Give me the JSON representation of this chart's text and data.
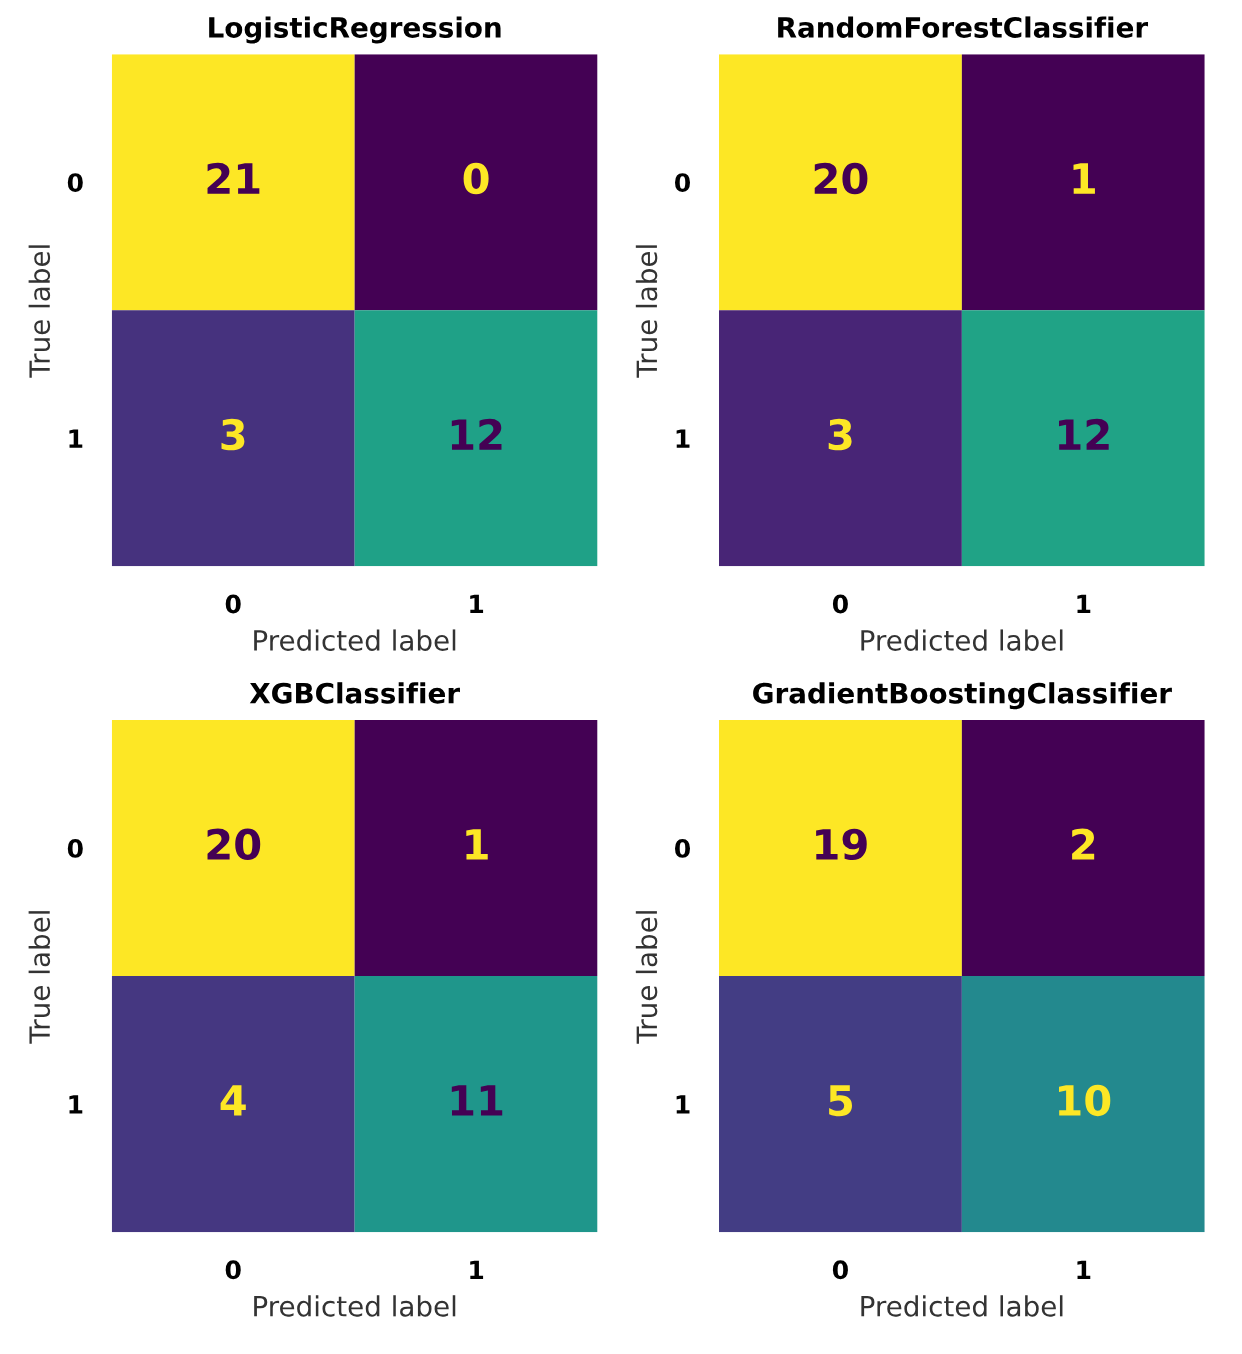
{
  "chart_data": [
    {
      "type": "heatmap",
      "title": "LogisticRegression",
      "xlabel": "Predicted label",
      "ylabel": "True label",
      "categories": [
        "0",
        "1"
      ],
      "y_categories": [
        "0",
        "1"
      ],
      "cells": [
        [
          21,
          0
        ],
        [
          3,
          12
        ]
      ],
      "data_labels": true,
      "grid": false
    },
    {
      "type": "heatmap",
      "title": "RandomForestClassifier",
      "xlabel": "Predicted label",
      "ylabel": "True label",
      "categories": [
        "0",
        "1"
      ],
      "y_categories": [
        "0",
        "1"
      ],
      "cells": [
        [
          20,
          1
        ],
        [
          3,
          12
        ]
      ],
      "data_labels": true,
      "grid": false
    },
    {
      "type": "heatmap",
      "title": "XGBClassifier",
      "xlabel": "Predicted label",
      "ylabel": "True label",
      "categories": [
        "0",
        "1"
      ],
      "y_categories": [
        "0",
        "1"
      ],
      "cells": [
        [
          20,
          1
        ],
        [
          4,
          11
        ]
      ],
      "data_labels": true,
      "grid": false
    },
    {
      "type": "heatmap",
      "title": "GradientBoostingClassifier",
      "xlabel": "Predicted label",
      "ylabel": "True label",
      "categories": [
        "0",
        "1"
      ],
      "y_categories": [
        "0",
        "1"
      ],
      "cells": [
        [
          19,
          2
        ],
        [
          5,
          10
        ]
      ],
      "data_labels": true,
      "grid": false
    }
  ]
}
